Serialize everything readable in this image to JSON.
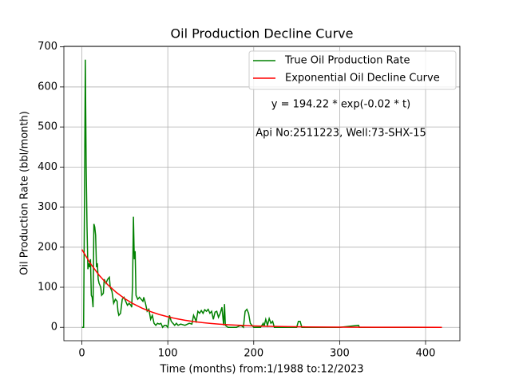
{
  "chart_data": {
    "type": "line",
    "title": "Oil Production Decline Curve",
    "x_label": "Time (months) from:1/1988 to:12/2023",
    "y_label": "Oil Production Rate (bbl/month)",
    "annotations": [
      "y = 194.22 * exp(-0.02 * t)",
      "Api No:2511223, Well:73-SHX-15"
    ],
    "xlim": [
      -20.95,
      439.95
    ],
    "xticks": [
      0,
      100,
      200,
      300,
      400
    ],
    "ylim": [
      -33.4,
      701.4
    ],
    "yticks": [
      0,
      100,
      200,
      300,
      400,
      500,
      600,
      700
    ],
    "grid": true,
    "legend": "upper right",
    "series": [
      {
        "name": "True Oil Production Rate",
        "color": "#008000",
        "x": [
          0,
          2,
          3,
          4,
          5,
          6,
          7,
          8,
          9,
          10,
          11,
          12,
          13,
          14,
          15,
          16,
          17,
          18,
          19,
          20,
          22,
          23,
          25,
          26,
          28,
          30,
          32,
          33,
          35,
          37,
          39,
          41,
          42,
          43,
          45,
          47,
          49,
          51,
          53,
          55,
          57,
          58,
          59,
          60,
          61,
          62,
          63,
          65,
          67,
          69,
          71,
          72,
          74,
          76,
          78,
          80,
          82,
          84,
          86,
          88,
          90,
          92,
          94,
          96,
          98,
          100,
          102,
          104,
          106,
          108,
          110,
          112,
          115,
          120,
          125,
          128,
          130,
          133,
          135,
          137,
          139,
          141,
          143,
          145,
          147,
          149,
          151,
          153,
          155,
          157,
          159,
          161,
          163,
          165,
          166,
          167,
          170,
          175,
          180,
          185,
          188,
          190,
          192,
          194,
          196,
          200,
          205,
          208,
          211,
          212,
          214,
          216,
          218,
          220,
          222,
          224,
          230,
          240,
          250,
          252,
          254,
          256,
          270,
          300,
          322,
          323,
          350,
          419
        ],
        "values": [
          0,
          0,
          300,
          668,
          400,
          250,
          145,
          160,
          150,
          170,
          80,
          75,
          50,
          258,
          250,
          230,
          150,
          160,
          120,
          110,
          100,
          80,
          85,
          120,
          110,
          120,
          125,
          100,
          90,
          60,
          70,
          65,
          40,
          30,
          35,
          70,
          75,
          65,
          55,
          60,
          55,
          50,
          110,
          276,
          170,
          190,
          80,
          70,
          75,
          70,
          65,
          75,
          60,
          40,
          45,
          20,
          30,
          10,
          5,
          10,
          8,
          10,
          0,
          5,
          5,
          0,
          30,
          15,
          10,
          5,
          10,
          5,
          8,
          5,
          10,
          8,
          30,
          15,
          40,
          35,
          42,
          35,
          44,
          40,
          45,
          35,
          40,
          20,
          38,
          40,
          25,
          35,
          50,
          5,
          58,
          5,
          0,
          0,
          0,
          5,
          0,
          40,
          45,
          35,
          10,
          0,
          0,
          0,
          10,
          2,
          20,
          5,
          22,
          10,
          15,
          0,
          0,
          0,
          0,
          15,
          15,
          0,
          0,
          0,
          5,
          0,
          0,
          0
        ]
      },
      {
        "name": "Exponential Oil Decline Curve",
        "color": "#ff0000",
        "x": [
          0,
          10,
          20,
          30,
          40,
          50,
          60,
          70,
          80,
          90,
          100,
          110,
          120,
          130,
          140,
          150,
          160,
          170,
          180,
          190,
          200,
          220,
          240,
          260,
          280,
          300,
          340,
          380,
          419
        ],
        "values": [
          194.22,
          159.01,
          130.19,
          106.59,
          87.27,
          71.45,
          58.5,
          47.89,
          39.21,
          32.1,
          26.28,
          21.52,
          17.62,
          14.43,
          11.81,
          9.67,
          7.92,
          6.48,
          5.31,
          4.35,
          3.56,
          2.38,
          1.6,
          1.07,
          0.72,
          0.48,
          0.22,
          0.1,
          0.04
        ]
      }
    ]
  }
}
